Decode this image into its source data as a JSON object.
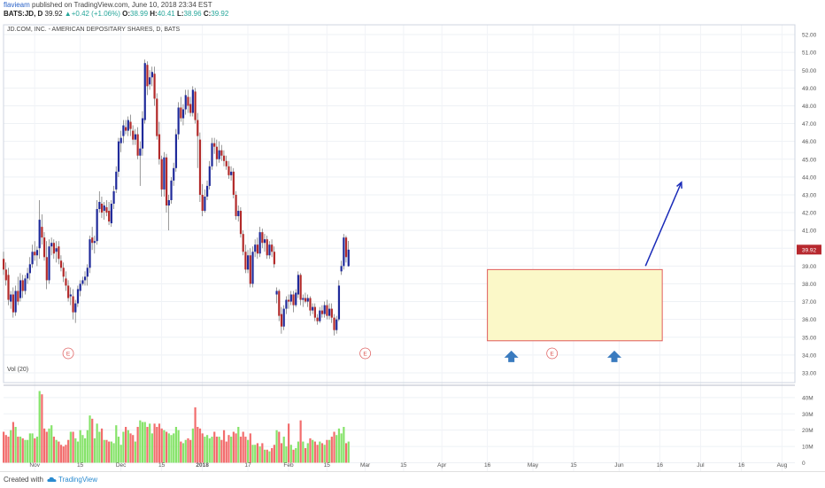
{
  "header": {
    "user": "flavieam",
    "published": "published on TradingView.com, June 10, 2018 23:34 EST",
    "symbol_line": "BATS:JD, D",
    "price": "39.92",
    "change": "+0.42 (+1.06%)",
    "o_label": "O:",
    "o": "38.99",
    "h_label": "H:",
    "h": "40.41",
    "l_label": "L:",
    "l": "38.96",
    "c_label": "C:",
    "c": "39.92"
  },
  "footer": {
    "created": "Created with",
    "brand": "TradingView"
  },
  "colors": {
    "up": "#1f2a9a",
    "down": "#b22a2a",
    "vol_up": "#86e36a",
    "vol_down": "#f26d6d",
    "box_fill": "#fbf8c8",
    "box_stroke": "#e05c5c",
    "arrow": "#3a7bbf",
    "trend": "#1a2bb8",
    "last_price_bg": "#b7282e"
  },
  "chart_data": {
    "type": "candlestick",
    "title": "JD.COM, INC. - AMERICAN DEPOSITARY SHARES, D, BATS",
    "volume_label": "Vol (20)",
    "last_price_label": "39.92",
    "earnings_marker": "E",
    "price_ylim": [
      32.5,
      52.5
    ],
    "price_ticks": [
      "52.00",
      "51.00",
      "50.00",
      "49.00",
      "48.00",
      "47.00",
      "46.00",
      "45.00",
      "44.00",
      "43.00",
      "42.00",
      "41.00",
      "40.00",
      "39.00",
      "38.00",
      "37.00",
      "36.00",
      "35.00",
      "34.00",
      "33.00"
    ],
    "volume_ylim": [
      -3,
      47
    ],
    "volume_ticks": [
      {
        "v": 40,
        "label": "40M"
      },
      {
        "v": 30,
        "label": "30M"
      },
      {
        "v": 20,
        "label": "20M"
      },
      {
        "v": 10,
        "label": "10M"
      },
      {
        "v": 0,
        "label": "0"
      }
    ],
    "x_axis": [
      {
        "label": "Nov",
        "i": 13
      },
      {
        "label": "15",
        "i": 32
      },
      {
        "label": "Dec",
        "i": 49
      },
      {
        "label": "15",
        "i": 66
      },
      {
        "label": "2018",
        "i": 83
      },
      {
        "label": "17",
        "i": 102
      },
      {
        "label": "Feb",
        "i": 119
      },
      {
        "label": "15",
        "i": 135
      },
      {
        "label": "Mar",
        "i": 151
      },
      {
        "label": "15",
        "i": 167
      },
      {
        "label": "Apr",
        "i": 183
      },
      {
        "label": "16",
        "i": 202
      },
      {
        "label": "May",
        "i": 221
      },
      {
        "label": "15",
        "i": 238
      },
      {
        "label": "Jun",
        "i": 257
      },
      {
        "label": "16",
        "i": 274
      },
      {
        "label": "Jul",
        "i": 291
      },
      {
        "label": "16",
        "i": 308
      },
      {
        "label": "Aug",
        "i": 325
      }
    ],
    "earnings_at": [
      27,
      151,
      229
    ],
    "support_box": {
      "i0": 202,
      "i1": 275,
      "y0": 34.8,
      "y1": 38.8
    },
    "support_arrows": [
      {
        "i": 212,
        "y": 33.9
      },
      {
        "i": 255,
        "y": 33.9
      }
    ],
    "trend_arrow": {
      "i0": 268,
      "y0": 39.0,
      "i1": 283,
      "y1": 43.7
    },
    "candles": [
      {
        "o": 39.4,
        "h": 39.8,
        "l": 38.5,
        "c": 38.8,
        "v": 19
      },
      {
        "o": 38.8,
        "h": 39.2,
        "l": 37.9,
        "c": 38.2,
        "v": 17
      },
      {
        "o": 38.5,
        "h": 38.9,
        "l": 36.8,
        "c": 37.1,
        "v": 16
      },
      {
        "o": 37.0,
        "h": 37.6,
        "l": 36.6,
        "c": 37.4,
        "v": 20
      },
      {
        "o": 37.4,
        "h": 37.8,
        "l": 36.1,
        "c": 36.4,
        "v": 25
      },
      {
        "o": 36.4,
        "h": 37.9,
        "l": 36.2,
        "c": 37.6,
        "v": 22
      },
      {
        "o": 37.6,
        "h": 38.4,
        "l": 36.8,
        "c": 37.0,
        "v": 16
      },
      {
        "o": 37.2,
        "h": 38.6,
        "l": 37.0,
        "c": 38.2,
        "v": 16
      },
      {
        "o": 38.2,
        "h": 38.5,
        "l": 37.2,
        "c": 37.6,
        "v": 15
      },
      {
        "o": 37.6,
        "h": 38.5,
        "l": 37.4,
        "c": 38.3,
        "v": 14
      },
      {
        "o": 38.3,
        "h": 38.9,
        "l": 38.0,
        "c": 38.6,
        "v": 14
      },
      {
        "o": 38.6,
        "h": 39.5,
        "l": 38.2,
        "c": 39.1,
        "v": 18
      },
      {
        "o": 39.1,
        "h": 40.2,
        "l": 38.9,
        "c": 39.8,
        "v": 18
      },
      {
        "o": 39.8,
        "h": 40.4,
        "l": 39.3,
        "c": 39.6,
        "v": 15
      },
      {
        "o": 39.6,
        "h": 40.1,
        "l": 39.0,
        "c": 39.9,
        "v": 16
      },
      {
        "o": 40.0,
        "h": 42.7,
        "l": 39.4,
        "c": 41.6,
        "v": 44
      },
      {
        "o": 41.2,
        "h": 41.9,
        "l": 40.2,
        "c": 40.6,
        "v": 42
      },
      {
        "o": 40.6,
        "h": 40.9,
        "l": 39.3,
        "c": 39.5,
        "v": 21
      },
      {
        "o": 39.5,
        "h": 40.4,
        "l": 37.7,
        "c": 38.2,
        "v": 19
      },
      {
        "o": 38.2,
        "h": 40.5,
        "l": 38.0,
        "c": 40.1,
        "v": 21
      },
      {
        "o": 40.1,
        "h": 40.6,
        "l": 39.6,
        "c": 40.3,
        "v": 23
      },
      {
        "o": 40.3,
        "h": 40.5,
        "l": 39.4,
        "c": 39.7,
        "v": 16
      },
      {
        "o": 39.8,
        "h": 40.4,
        "l": 39.2,
        "c": 40.0,
        "v": 14
      },
      {
        "o": 40.1,
        "h": 40.4,
        "l": 39.1,
        "c": 39.4,
        "v": 13
      },
      {
        "o": 39.3,
        "h": 39.6,
        "l": 38.7,
        "c": 38.9,
        "v": 11
      },
      {
        "o": 38.9,
        "h": 39.2,
        "l": 38.1,
        "c": 38.4,
        "v": 10
      },
      {
        "o": 38.3,
        "h": 38.7,
        "l": 37.6,
        "c": 37.9,
        "v": 11
      },
      {
        "o": 37.9,
        "h": 38.2,
        "l": 37.0,
        "c": 37.2,
        "v": 14
      },
      {
        "o": 37.3,
        "h": 37.8,
        "l": 36.8,
        "c": 37.4,
        "v": 19
      },
      {
        "o": 37.3,
        "h": 37.7,
        "l": 36.0,
        "c": 36.4,
        "v": 19
      },
      {
        "o": 36.4,
        "h": 37.1,
        "l": 35.8,
        "c": 36.9,
        "v": 15
      },
      {
        "o": 36.9,
        "h": 37.9,
        "l": 36.7,
        "c": 37.7,
        "v": 13
      },
      {
        "o": 37.6,
        "h": 38.2,
        "l": 37.3,
        "c": 38.0,
        "v": 20
      },
      {
        "o": 38.0,
        "h": 38.4,
        "l": 37.9,
        "c": 38.2,
        "v": 17
      },
      {
        "o": 38.2,
        "h": 38.7,
        "l": 37.9,
        "c": 38.4,
        "v": 15
      },
      {
        "o": 38.4,
        "h": 39.1,
        "l": 37.9,
        "c": 38.9,
        "v": 20
      },
      {
        "o": 38.9,
        "h": 40.7,
        "l": 38.6,
        "c": 40.5,
        "v": 29
      },
      {
        "o": 40.6,
        "h": 41.2,
        "l": 39.9,
        "c": 40.3,
        "v": 27
      },
      {
        "o": 40.3,
        "h": 40.7,
        "l": 39.7,
        "c": 40.4,
        "v": 15
      },
      {
        "o": 40.4,
        "h": 42.7,
        "l": 40.2,
        "c": 42.2,
        "v": 24
      },
      {
        "o": 42.2,
        "h": 43.2,
        "l": 42.0,
        "c": 42.6,
        "v": 19
      },
      {
        "o": 42.5,
        "h": 42.9,
        "l": 41.7,
        "c": 42.0,
        "v": 21
      },
      {
        "o": 42.1,
        "h": 42.6,
        "l": 41.6,
        "c": 42.4,
        "v": 14
      },
      {
        "o": 42.3,
        "h": 42.7,
        "l": 41.8,
        "c": 42.0,
        "v": 14
      },
      {
        "o": 42.1,
        "h": 42.6,
        "l": 41.3,
        "c": 41.5,
        "v": 13
      },
      {
        "o": 41.4,
        "h": 42.7,
        "l": 41.2,
        "c": 42.5,
        "v": 13
      },
      {
        "o": 42.5,
        "h": 43.5,
        "l": 42.2,
        "c": 43.2,
        "v": 12
      },
      {
        "o": 43.3,
        "h": 44.6,
        "l": 43.1,
        "c": 44.3,
        "v": 23
      },
      {
        "o": 44.3,
        "h": 46.2,
        "l": 44.0,
        "c": 46.0,
        "v": 16
      },
      {
        "o": 45.9,
        "h": 46.6,
        "l": 45.4,
        "c": 46.2,
        "v": 11
      },
      {
        "o": 46.3,
        "h": 47.2,
        "l": 45.9,
        "c": 46.9,
        "v": 19
      },
      {
        "o": 46.8,
        "h": 47.2,
        "l": 46.4,
        "c": 46.6,
        "v": 22
      },
      {
        "o": 46.6,
        "h": 47.4,
        "l": 46.3,
        "c": 47.2,
        "v": 20
      },
      {
        "o": 47.1,
        "h": 47.5,
        "l": 46.3,
        "c": 46.7,
        "v": 18
      },
      {
        "o": 46.6,
        "h": 46.9,
        "l": 45.8,
        "c": 46.1,
        "v": 17
      },
      {
        "o": 46.1,
        "h": 46.7,
        "l": 45.8,
        "c": 46.4,
        "v": 13
      },
      {
        "o": 46.4,
        "h": 46.8,
        "l": 45.0,
        "c": 45.2,
        "v": 22
      },
      {
        "o": 45.2,
        "h": 46.0,
        "l": 43.5,
        "c": 45.6,
        "v": 26
      },
      {
        "o": 45.6,
        "h": 47.7,
        "l": 45.2,
        "c": 47.3,
        "v": 25
      },
      {
        "o": 47.2,
        "h": 50.6,
        "l": 47.0,
        "c": 50.4,
        "v": 25
      },
      {
        "o": 50.3,
        "h": 50.5,
        "l": 48.6,
        "c": 49.1,
        "v": 22
      },
      {
        "o": 49.2,
        "h": 50.0,
        "l": 48.9,
        "c": 49.6,
        "v": 24
      },
      {
        "o": 49.6,
        "h": 50.2,
        "l": 49.1,
        "c": 49.9,
        "v": 18
      },
      {
        "o": 49.8,
        "h": 50.2,
        "l": 48.0,
        "c": 48.4,
        "v": 24
      },
      {
        "o": 48.4,
        "h": 48.7,
        "l": 46.1,
        "c": 46.3,
        "v": 22
      },
      {
        "o": 46.4,
        "h": 47.1,
        "l": 44.7,
        "c": 45.0,
        "v": 24
      },
      {
        "o": 45.0,
        "h": 45.2,
        "l": 42.9,
        "c": 43.3,
        "v": 21
      },
      {
        "o": 43.3,
        "h": 45.4,
        "l": 42.9,
        "c": 45.1,
        "v": 20
      },
      {
        "o": 45.1,
        "h": 45.3,
        "l": 42.0,
        "c": 42.4,
        "v": 19
      },
      {
        "o": 42.4,
        "h": 43.0,
        "l": 41.0,
        "c": 42.7,
        "v": 18
      },
      {
        "o": 42.7,
        "h": 44.0,
        "l": 42.5,
        "c": 43.8,
        "v": 17
      },
      {
        "o": 43.8,
        "h": 44.8,
        "l": 43.5,
        "c": 44.5,
        "v": 18
      },
      {
        "o": 44.5,
        "h": 46.7,
        "l": 44.3,
        "c": 46.4,
        "v": 22
      },
      {
        "o": 46.4,
        "h": 48.2,
        "l": 46.1,
        "c": 47.9,
        "v": 20
      },
      {
        "o": 47.9,
        "h": 48.5,
        "l": 47.1,
        "c": 47.3,
        "v": 13
      },
      {
        "o": 47.3,
        "h": 48.1,
        "l": 46.9,
        "c": 47.8,
        "v": 12
      },
      {
        "o": 47.8,
        "h": 48.9,
        "l": 47.5,
        "c": 48.6,
        "v": 14
      },
      {
        "o": 48.5,
        "h": 48.9,
        "l": 47.6,
        "c": 48.0,
        "v": 15
      },
      {
        "o": 48.1,
        "h": 48.5,
        "l": 47.4,
        "c": 47.6,
        "v": 14
      },
      {
        "o": 47.6,
        "h": 49.1,
        "l": 47.4,
        "c": 48.9,
        "v": 21
      },
      {
        "o": 48.8,
        "h": 49.0,
        "l": 47.0,
        "c": 47.2,
        "v": 34
      },
      {
        "o": 47.2,
        "h": 47.6,
        "l": 44.5,
        "c": 46.3,
        "v": 22
      },
      {
        "o": 46.1,
        "h": 46.5,
        "l": 42.6,
        "c": 43.0,
        "v": 21
      },
      {
        "o": 43.0,
        "h": 43.6,
        "l": 41.8,
        "c": 42.1,
        "v": 18
      },
      {
        "o": 42.1,
        "h": 43.3,
        "l": 42.0,
        "c": 42.9,
        "v": 16
      },
      {
        "o": 42.9,
        "h": 43.8,
        "l": 42.7,
        "c": 43.5,
        "v": 17
      },
      {
        "o": 43.5,
        "h": 44.9,
        "l": 43.3,
        "c": 44.6,
        "v": 15
      },
      {
        "o": 44.6,
        "h": 46.2,
        "l": 44.4,
        "c": 45.9,
        "v": 16
      },
      {
        "o": 45.9,
        "h": 46.2,
        "l": 45.3,
        "c": 45.7,
        "v": 19
      },
      {
        "o": 45.7,
        "h": 46.1,
        "l": 44.6,
        "c": 45.0,
        "v": 16
      },
      {
        "o": 45.0,
        "h": 46.0,
        "l": 44.8,
        "c": 45.5,
        "v": 16
      },
      {
        "o": 45.5,
        "h": 45.8,
        "l": 44.9,
        "c": 45.2,
        "v": 14
      },
      {
        "o": 45.2,
        "h": 45.5,
        "l": 44.6,
        "c": 44.9,
        "v": 20
      },
      {
        "o": 44.9,
        "h": 45.2,
        "l": 44.4,
        "c": 44.6,
        "v": 13
      },
      {
        "o": 44.6,
        "h": 44.9,
        "l": 43.9,
        "c": 44.1,
        "v": 17
      },
      {
        "o": 44.1,
        "h": 44.6,
        "l": 43.8,
        "c": 44.3,
        "v": 16
      },
      {
        "o": 44.3,
        "h": 44.5,
        "l": 42.8,
        "c": 43.0,
        "v": 19
      },
      {
        "o": 43.0,
        "h": 43.2,
        "l": 41.6,
        "c": 41.8,
        "v": 18
      },
      {
        "o": 41.8,
        "h": 42.4,
        "l": 41.5,
        "c": 42.1,
        "v": 22
      },
      {
        "o": 42.1,
        "h": 42.3,
        "l": 40.6,
        "c": 40.8,
        "v": 16
      },
      {
        "o": 40.8,
        "h": 41.0,
        "l": 39.6,
        "c": 39.8,
        "v": 19
      },
      {
        "o": 39.8,
        "h": 40.2,
        "l": 38.6,
        "c": 38.8,
        "v": 16
      },
      {
        "o": 38.8,
        "h": 39.9,
        "l": 38.6,
        "c": 39.6,
        "v": 14
      },
      {
        "o": 39.6,
        "h": 40.0,
        "l": 37.8,
        "c": 38.0,
        "v": 18
      },
      {
        "o": 38.0,
        "h": 40.1,
        "l": 37.8,
        "c": 39.8,
        "v": 11
      },
      {
        "o": 39.8,
        "h": 40.5,
        "l": 39.5,
        "c": 40.2,
        "v": 11
      },
      {
        "o": 40.2,
        "h": 40.6,
        "l": 39.4,
        "c": 39.7,
        "v": 12
      },
      {
        "o": 39.7,
        "h": 41.2,
        "l": 39.5,
        "c": 40.9,
        "v": 10
      },
      {
        "o": 40.9,
        "h": 41.1,
        "l": 40.0,
        "c": 40.3,
        "v": 12
      },
      {
        "o": 40.3,
        "h": 40.8,
        "l": 39.8,
        "c": 40.5,
        "v": 8
      },
      {
        "o": 40.5,
        "h": 40.7,
        "l": 39.4,
        "c": 39.6,
        "v": 8
      },
      {
        "o": 39.6,
        "h": 40.4,
        "l": 39.4,
        "c": 40.2,
        "v": 7
      },
      {
        "o": 40.2,
        "h": 40.5,
        "l": 39.5,
        "c": 39.8,
        "v": 9
      },
      {
        "o": 39.8,
        "h": 40.1,
        "l": 38.9,
        "c": 39.1,
        "v": 11
      },
      {
        "o": 37.4,
        "h": 37.8,
        "l": 36.9,
        "c": 37.6,
        "v": 20
      },
      {
        "o": 37.6,
        "h": 37.7,
        "l": 35.9,
        "c": 36.2,
        "v": 19
      },
      {
        "o": 36.3,
        "h": 36.7,
        "l": 35.2,
        "c": 35.6,
        "v": 12
      },
      {
        "o": 35.6,
        "h": 36.8,
        "l": 35.4,
        "c": 36.6,
        "v": 16
      },
      {
        "o": 36.6,
        "h": 37.3,
        "l": 36.3,
        "c": 37.1,
        "v": 10
      },
      {
        "o": 37.1,
        "h": 37.4,
        "l": 36.6,
        "c": 37.0,
        "v": 24
      },
      {
        "o": 37.0,
        "h": 37.6,
        "l": 36.8,
        "c": 37.4,
        "v": 11
      },
      {
        "o": 37.4,
        "h": 37.6,
        "l": 36.4,
        "c": 36.8,
        "v": 8
      },
      {
        "o": 36.8,
        "h": 37.7,
        "l": 36.7,
        "c": 37.5,
        "v": 9
      },
      {
        "o": 37.4,
        "h": 38.7,
        "l": 37.2,
        "c": 38.5,
        "v": 13
      },
      {
        "o": 38.5,
        "h": 38.6,
        "l": 36.8,
        "c": 37.1,
        "v": 26
      },
      {
        "o": 37.1,
        "h": 37.4,
        "l": 36.7,
        "c": 37.2,
        "v": 13
      },
      {
        "o": 37.2,
        "h": 37.5,
        "l": 36.9,
        "c": 37.0,
        "v": 9
      },
      {
        "o": 37.0,
        "h": 37.4,
        "l": 36.7,
        "c": 37.2,
        "v": 12
      },
      {
        "o": 37.2,
        "h": 37.3,
        "l": 36.2,
        "c": 36.5,
        "v": 15
      },
      {
        "o": 36.5,
        "h": 36.9,
        "l": 36.3,
        "c": 36.7,
        "v": 14
      },
      {
        "o": 36.7,
        "h": 36.9,
        "l": 35.9,
        "c": 36.1,
        "v": 13
      },
      {
        "o": 36.1,
        "h": 36.3,
        "l": 35.7,
        "c": 35.9,
        "v": 11
      },
      {
        "o": 35.9,
        "h": 36.7,
        "l": 35.8,
        "c": 36.5,
        "v": 13
      },
      {
        "o": 36.5,
        "h": 36.8,
        "l": 36.1,
        "c": 36.3,
        "v": 12
      },
      {
        "o": 36.3,
        "h": 37.0,
        "l": 36.1,
        "c": 36.8,
        "v": 11
      },
      {
        "o": 36.8,
        "h": 37.1,
        "l": 36.0,
        "c": 36.2,
        "v": 14
      },
      {
        "o": 36.2,
        "h": 36.9,
        "l": 36.0,
        "c": 36.6,
        "v": 14
      },
      {
        "o": 36.6,
        "h": 36.9,
        "l": 35.8,
        "c": 36.1,
        "v": 16
      },
      {
        "o": 36.1,
        "h": 36.3,
        "l": 35.1,
        "c": 35.4,
        "v": 19
      },
      {
        "o": 35.4,
        "h": 36.2,
        "l": 35.2,
        "c": 36.0,
        "v": 17
      },
      {
        "o": 36.0,
        "h": 38.2,
        "l": 35.9,
        "c": 37.9,
        "v": 21
      },
      {
        "o": 38.7,
        "h": 39.3,
        "l": 38.5,
        "c": 39.0,
        "v": 18
      },
      {
        "o": 39.0,
        "h": 40.8,
        "l": 38.8,
        "c": 40.6,
        "v": 22
      },
      {
        "o": 40.6,
        "h": 40.7,
        "l": 39.2,
        "c": 39.5,
        "v": 12
      },
      {
        "o": 38.99,
        "h": 40.41,
        "l": 38.96,
        "c": 39.92,
        "v": 13
      }
    ]
  }
}
